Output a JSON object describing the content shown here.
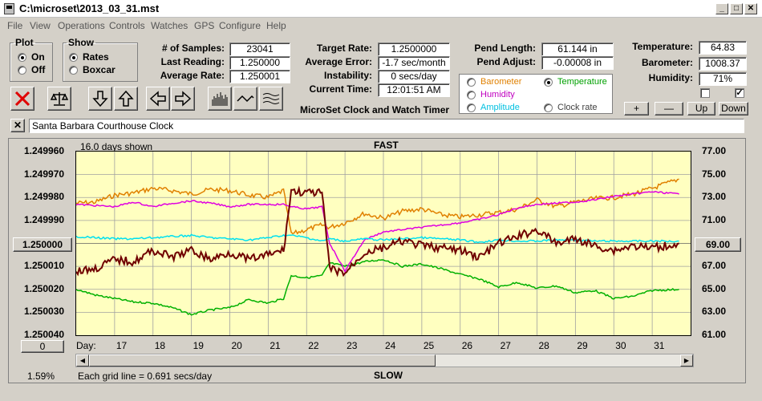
{
  "window": {
    "title": "C:\\microset\\2013_03_31.mst"
  },
  "menu": [
    "File",
    "View",
    "Operations",
    "Controls",
    "Watches",
    "GPS",
    "Configure",
    "Help"
  ],
  "plot_group": {
    "title": "Plot",
    "on": "On",
    "off": "Off",
    "selected": "On"
  },
  "show_group": {
    "title": "Show",
    "rates": "Rates",
    "boxcar": "Boxcar",
    "selected": "Rates"
  },
  "stats": {
    "samples_label": "# of Samples:",
    "samples": "23041",
    "last_label": "Last Reading:",
    "last": "1.250000",
    "avg_label": "Average Rate:",
    "avg": "1.250001"
  },
  "rates": {
    "target_label": "Target Rate:",
    "target": "1.2500000",
    "avgerr_label": "Average Error:",
    "avgerr": "-1.7 sec/month",
    "instab_label": "Instability:",
    "instab": "0 secs/day",
    "time_label": "Current Time:",
    "time": "12:01:51 AM"
  },
  "pendulum": {
    "length_label": "Pend Length:",
    "length": "61.144 in",
    "adjust_label": "Pend Adjust:",
    "adjust": "-0.00008 in"
  },
  "environment": {
    "temp_label": "Temperature:",
    "temp": "64.83",
    "baro_label": "Barometer:",
    "baro": "1008.37",
    "hum_label": "Humidity:",
    "hum": "71%",
    "check1": false,
    "check2": true
  },
  "sensor_select": {
    "options": [
      {
        "label": "Barometer",
        "color": "#e08000"
      },
      {
        "label": "Temperature",
        "color": "#00a000"
      },
      {
        "label": "Humidity",
        "color": "#c000c0"
      },
      {
        "label": "Amplitude",
        "color": "#00c0e0"
      },
      {
        "label": "Clock rate",
        "color": "#404040"
      }
    ],
    "selected": "Temperature"
  },
  "adjust_buttons": {
    "plus": "+",
    "minus": "—",
    "up": "Up",
    "down": "Down"
  },
  "app_caption": "MicroSet Clock and Watch Timer",
  "clock_name": "Santa Barbara Courthouse Clock",
  "close_glyph": "✕",
  "chart": {
    "days_shown": "16.0 days shown",
    "top_label": "FAST",
    "bottom_label": "SLOW",
    "grid_note": "Each grid line = 0.691 secs/day",
    "percent": "1.59%",
    "center_value_left": "1.250000",
    "center_value_right": "69.00",
    "zero_button": "0",
    "day_label": "Day:"
  },
  "chart_data": {
    "type": "line",
    "title": "FAST",
    "xlabel": "Day:",
    "x_ticks": [
      "17",
      "18",
      "19",
      "20",
      "21",
      "22",
      "23",
      "24",
      "25",
      "26",
      "27",
      "28",
      "29",
      "30",
      "31"
    ],
    "left_y_ticks": [
      "1.249960",
      "1.249970",
      "1.249980",
      "1.249990",
      "1.250000",
      "1.250010",
      "1.250020",
      "1.250030",
      "1.250040"
    ],
    "right_y_ticks": [
      "77.00",
      "75.00",
      "73.00",
      "71.00",
      "69.00",
      "67.00",
      "65.00",
      "63.00",
      "61.00"
    ],
    "xlim": [
      16.0,
      32.0
    ],
    "left_ylim": [
      1.25004,
      1.24996
    ],
    "right_ylim": [
      61,
      77
    ],
    "colors": {
      "Barometer": "#e08000",
      "Temperature": "#00b000",
      "Humidity": "#e000e0",
      "Amplitude": "#00e0f0",
      "Clock rate": "#700000"
    },
    "x": [
      16.0,
      16.5,
      17.0,
      17.5,
      18.0,
      18.5,
      19.0,
      19.5,
      20.0,
      20.5,
      21.0,
      21.4,
      21.6,
      22.0,
      22.4,
      22.6,
      23.0,
      23.5,
      24.0,
      24.5,
      25.0,
      25.5,
      26.0,
      26.5,
      27.0,
      27.5,
      28.0,
      28.5,
      29.0,
      29.5,
      30.0,
      30.5,
      31.0,
      31.7
    ],
    "series": [
      {
        "name": "Barometer",
        "y": [
          72.5,
          72.6,
          73.2,
          73.4,
          73.8,
          73.6,
          73.3,
          73.7,
          73.6,
          73.2,
          73.0,
          73.6,
          69.8,
          70.2,
          70.6,
          70.4,
          70.8,
          71.6,
          71.2,
          71.8,
          72.0,
          71.5,
          71.3,
          71.5,
          71.7,
          72.0,
          72.8,
          72.2,
          72.6,
          72.9,
          73.0,
          73.3,
          73.8,
          74.6
        ]
      },
      {
        "name": "Temperature",
        "y": [
          65.0,
          64.5,
          64.2,
          63.9,
          63.8,
          63.4,
          62.8,
          63.2,
          63.4,
          64.1,
          63.8,
          64.2,
          66.2,
          66.0,
          66.2,
          67.3,
          67.0,
          67.4,
          67.6,
          67.0,
          67.2,
          66.8,
          66.3,
          65.9,
          65.2,
          65.6,
          65.1,
          65.3,
          64.7,
          64.9,
          64.2,
          64.4,
          64.9,
          65.0
        ]
      },
      {
        "name": "Humidity",
        "y": [
          72.4,
          72.3,
          72.2,
          72.6,
          72.2,
          72.5,
          72.7,
          72.5,
          72.2,
          72.4,
          72.4,
          72.4,
          72.2,
          72.0,
          72.2,
          69.0,
          66.6,
          69.3,
          70.0,
          70.2,
          70.4,
          70.6,
          70.8,
          71.1,
          71.5,
          72.1,
          72.4,
          72.5,
          72.6,
          72.8,
          73.1,
          73.3,
          73.5,
          73.3
        ]
      },
      {
        "name": "Amplitude",
        "y": [
          69.6,
          69.5,
          69.4,
          69.4,
          69.5,
          69.6,
          69.7,
          69.5,
          69.4,
          69.3,
          69.5,
          69.7,
          69.7,
          69.5,
          69.2,
          69.4,
          69.2,
          69.4,
          69.3,
          69.4,
          69.5,
          69.4,
          69.3,
          69.1,
          69.3,
          69.2,
          69.2,
          69.3,
          69.3,
          69.2,
          69.2,
          69.2,
          69.2,
          69.2
        ]
      },
      {
        "name": "Clock rate",
        "y": [
          1.250012,
          1.250011,
          1.250007,
          1.250008,
          1.250003,
          1.250006,
          1.250003,
          1.250007,
          1.250004,
          1.250007,
          1.250005,
          1.250003,
          1.249977,
          1.249978,
          1.249978,
          1.250011,
          1.250013,
          1.250004,
          1.250002,
          1.249999,
          1.250001,
          1.250002,
          1.250003,
          1.250006,
          1.25,
          1.249997,
          1.249994,
          1.25,
          1.249998,
          1.250001,
          1.250003,
          1.250001,
          1.250002,
          1.25
        ]
      }
    ]
  }
}
